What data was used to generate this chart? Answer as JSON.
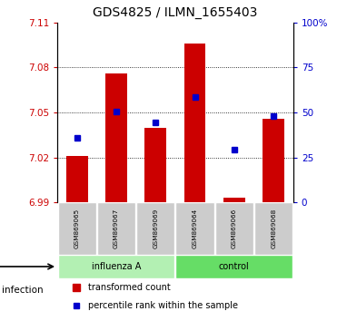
{
  "title": "GDS4825 / ILMN_1655403",
  "samples": [
    "GSM869065",
    "GSM869067",
    "GSM869069",
    "GSM869064",
    "GSM869066",
    "GSM869068"
  ],
  "groups": [
    "influenza A",
    "influenza A",
    "influenza A",
    "control",
    "control",
    "control"
  ],
  "group_labels": [
    "influenza A",
    "control"
  ],
  "group_colors": [
    "#b3f0b3",
    "#66dd66"
  ],
  "infection_label": "infection",
  "bar_bottom": 6.99,
  "bar_tops": [
    7.021,
    7.076,
    7.04,
    7.096,
    6.993,
    7.046
  ],
  "percentile_values": [
    0.36,
    0.505,
    0.445,
    0.585,
    0.295,
    0.478
  ],
  "ylim_left": [
    6.99,
    7.11
  ],
  "ylim_right": [
    0,
    100
  ],
  "yticks_left": [
    6.99,
    7.02,
    7.05,
    7.08,
    7.11
  ],
  "ytick_labels_left": [
    "6.99",
    "7.02",
    "7.05",
    "7.08",
    "7.11"
  ],
  "yticks_right": [
    0,
    25,
    50,
    75,
    100
  ],
  "ytick_labels_right": [
    "0",
    "25",
    "50",
    "75",
    "100%"
  ],
  "bar_color": "#cc0000",
  "dot_color": "#0000cc",
  "grid_color": "#000000",
  "background_plot": "#ffffff",
  "background_label": "#dddddd",
  "label_fontsize": 8.5,
  "title_fontsize": 10
}
